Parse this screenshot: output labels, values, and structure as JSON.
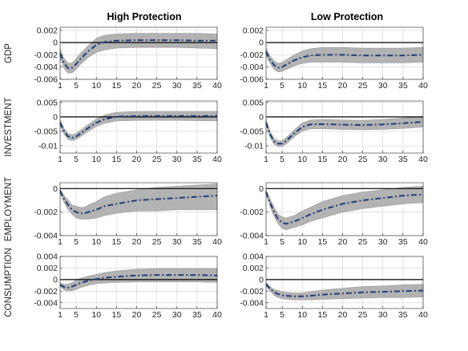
{
  "columns": [
    "High Protection",
    "Low Protection"
  ],
  "rows": [
    "GDP",
    "INVESTMENT",
    "EMPLOYMENT",
    "CONSUMPTION"
  ],
  "colors": {
    "band": "#b3b3b3",
    "irf": "#1f3f7a",
    "zero_line": "#000000",
    "grid": "#dcdcdc"
  },
  "chart_data": [
    {
      "type": "line",
      "row": "GDP",
      "column": "High Protection",
      "ylabel": "GDP",
      "xlim": [
        1,
        40
      ],
      "ylim": [
        -0.006,
        0.0025
      ],
      "xticks": [
        1,
        5,
        10,
        15,
        20,
        25,
        30,
        35,
        40
      ],
      "yticks": [
        0.002,
        0,
        -0.002,
        -0.004,
        -0.006
      ],
      "ytick_labels": [
        "0.002",
        "0",
        "-0.002",
        "-0.004",
        "-0.006"
      ],
      "grid": true,
      "zero_line": 0,
      "x": [
        1,
        2,
        3,
        4,
        5,
        6,
        8,
        10,
        12,
        15,
        20,
        25,
        30,
        35,
        40
      ],
      "series": [
        {
          "role": "median",
          "style": "dash-dot",
          "values": [
            -0.0018,
            -0.0034,
            -0.0042,
            -0.0041,
            -0.0035,
            -0.0027,
            -0.0014,
            -0.0004,
            0.0001,
            0.0003,
            0.0004,
            0.0004,
            0.0004,
            0.0003,
            0.0003
          ]
        },
        {
          "role": "lower",
          "values": [
            -0.0026,
            -0.0042,
            -0.005,
            -0.0049,
            -0.0044,
            -0.0036,
            -0.0024,
            -0.0016,
            -0.0012,
            -0.0009,
            -0.0008,
            -0.0008,
            -0.0008,
            -0.0009,
            -0.001
          ]
        },
        {
          "role": "upper",
          "values": [
            -0.001,
            -0.0026,
            -0.0034,
            -0.0033,
            -0.0026,
            -0.0018,
            -0.0005,
            0.0007,
            0.0012,
            0.0014,
            0.0015,
            0.0015,
            0.0015,
            0.0015,
            0.0014
          ]
        }
      ]
    },
    {
      "type": "line",
      "row": "GDP",
      "column": "Low Protection",
      "ylabel": "",
      "xlim": [
        1,
        40
      ],
      "ylim": [
        -0.006,
        0.0025
      ],
      "xticks": [
        1,
        5,
        10,
        15,
        20,
        25,
        30,
        35,
        40
      ],
      "yticks": [
        0.002,
        0,
        -0.002,
        -0.004,
        -0.006
      ],
      "ytick_labels": [
        "0.002",
        "0",
        "-0.002",
        "-0.004",
        "-0.006"
      ],
      "grid": true,
      "zero_line": 0,
      "x": [
        1,
        2,
        3,
        4,
        5,
        6,
        8,
        10,
        12,
        15,
        20,
        25,
        30,
        35,
        40
      ],
      "series": [
        {
          "role": "median",
          "style": "dash-dot",
          "values": [
            -0.0015,
            -0.0028,
            -0.0037,
            -0.0041,
            -0.004,
            -0.0036,
            -0.0029,
            -0.0024,
            -0.0021,
            -0.002,
            -0.002,
            -0.0021,
            -0.0021,
            -0.0021,
            -0.002
          ]
        },
        {
          "role": "lower",
          "values": [
            -0.0021,
            -0.0034,
            -0.0044,
            -0.0048,
            -0.0047,
            -0.0044,
            -0.0038,
            -0.0034,
            -0.0032,
            -0.0032,
            -0.0032,
            -0.0033,
            -0.0033,
            -0.0033,
            -0.0032
          ]
        },
        {
          "role": "upper",
          "values": [
            -0.0009,
            -0.0022,
            -0.003,
            -0.0034,
            -0.0032,
            -0.0028,
            -0.002,
            -0.0014,
            -0.001,
            -0.0008,
            -0.0008,
            -0.0009,
            -0.0009,
            -0.0009,
            -0.0008
          ]
        }
      ]
    },
    {
      "type": "line",
      "row": "INVESTMENT",
      "column": "High Protection",
      "ylabel": "INVESTMENT",
      "xlim": [
        1,
        40
      ],
      "ylim": [
        -0.0125,
        0.0055
      ],
      "xticks": [
        1,
        5,
        10,
        15,
        20,
        25,
        30,
        35,
        40
      ],
      "yticks": [
        0.005,
        0,
        -0.005,
        -0.01
      ],
      "ytick_labels": [
        "0.005",
        "0",
        "-0.005",
        "-0.01"
      ],
      "grid": true,
      "zero_line": 0,
      "x": [
        1,
        2,
        3,
        4,
        5,
        6,
        8,
        10,
        12,
        15,
        20,
        25,
        30,
        35,
        40
      ],
      "series": [
        {
          "role": "median",
          "style": "dash-dot",
          "values": [
            -0.002,
            -0.005,
            -0.0068,
            -0.0072,
            -0.0068,
            -0.0058,
            -0.0038,
            -0.002,
            -0.0008,
            0.0001,
            0.0003,
            0.0003,
            0.0003,
            0.0003,
            0.0003
          ]
        },
        {
          "role": "lower",
          "values": [
            -0.003,
            -0.006,
            -0.0078,
            -0.0082,
            -0.0078,
            -0.0069,
            -0.005,
            -0.0033,
            -0.0022,
            -0.0014,
            -0.0012,
            -0.0012,
            -0.0012,
            -0.0013,
            -0.0014
          ]
        },
        {
          "role": "upper",
          "values": [
            -0.001,
            -0.004,
            -0.0058,
            -0.0062,
            -0.0057,
            -0.0047,
            -0.0026,
            -0.0007,
            0.0006,
            0.0016,
            0.0019,
            0.0019,
            0.0019,
            0.0019,
            0.0019
          ]
        }
      ]
    },
    {
      "type": "line",
      "row": "INVESTMENT",
      "column": "Low Protection",
      "ylabel": "",
      "xlim": [
        1,
        40
      ],
      "ylim": [
        -0.0125,
        0.0055
      ],
      "xticks": [
        1,
        5,
        10,
        15,
        20,
        25,
        30,
        35,
        40
      ],
      "yticks": [
        0.005,
        0,
        -0.005,
        -0.01
      ],
      "ytick_labels": [
        "0.005",
        "0",
        "-0.005",
        "-0.01"
      ],
      "grid": true,
      "zero_line": 0,
      "x": [
        1,
        2,
        3,
        4,
        5,
        6,
        8,
        10,
        12,
        15,
        20,
        25,
        30,
        35,
        40
      ],
      "series": [
        {
          "role": "median",
          "style": "dash-dot",
          "values": [
            -0.002,
            -0.006,
            -0.0085,
            -0.0093,
            -0.0092,
            -0.0083,
            -0.0057,
            -0.0035,
            -0.0026,
            -0.0025,
            -0.0027,
            -0.0028,
            -0.0026,
            -0.0022,
            -0.0017
          ]
        },
        {
          "role": "lower",
          "values": [
            -0.003,
            -0.007,
            -0.0095,
            -0.0103,
            -0.0102,
            -0.0094,
            -0.0069,
            -0.0049,
            -0.0041,
            -0.0041,
            -0.0043,
            -0.0044,
            -0.0043,
            -0.004,
            -0.0035
          ]
        },
        {
          "role": "upper",
          "values": [
            -0.001,
            -0.005,
            -0.0075,
            -0.0083,
            -0.0082,
            -0.0072,
            -0.0045,
            -0.0021,
            -0.0011,
            -0.0009,
            -0.0011,
            -0.0012,
            -0.0009,
            -0.0004,
            0.0001
          ]
        }
      ]
    },
    {
      "type": "line",
      "row": "EMPLOYMENT",
      "column": "High Protection",
      "ylabel": "EMPLOYMENT",
      "xlim": [
        1,
        40
      ],
      "ylim": [
        -0.004,
        0.0005
      ],
      "xticks": [
        1,
        5,
        10,
        15,
        20,
        25,
        30,
        35,
        40
      ],
      "yticks": [
        0,
        -0.002,
        -0.004
      ],
      "ytick_labels": [
        "0",
        "-0.002",
        "-0.004"
      ],
      "grid": true,
      "zero_line": 0,
      "x": [
        1,
        2,
        3,
        4,
        5,
        6,
        7,
        8,
        10,
        12,
        15,
        20,
        25,
        30,
        35,
        40
      ],
      "series": [
        {
          "role": "median",
          "style": "dash-dot",
          "values": [
            -0.0002,
            -0.0009,
            -0.0014,
            -0.0018,
            -0.002,
            -0.0021,
            -0.0021,
            -0.002,
            -0.0018,
            -0.0015,
            -0.0013,
            -0.001,
            -0.0009,
            -0.0008,
            -0.0007,
            -0.0006
          ]
        },
        {
          "role": "lower",
          "values": [
            -0.0004,
            -0.0012,
            -0.0018,
            -0.0022,
            -0.0025,
            -0.0026,
            -0.0026,
            -0.0026,
            -0.0025,
            -0.0023,
            -0.0021,
            -0.0019,
            -0.0019,
            -0.0018,
            -0.0018,
            -0.0018
          ]
        },
        {
          "role": "upper",
          "values": [
            0.0,
            -0.0006,
            -0.001,
            -0.0014,
            -0.0015,
            -0.0016,
            -0.0016,
            -0.0014,
            -0.0011,
            -0.0007,
            -0.0004,
            -0.0001,
            0.0001,
            0.0002,
            0.0003,
            0.0004
          ]
        }
      ]
    },
    {
      "type": "line",
      "row": "EMPLOYMENT",
      "column": "Low Protection",
      "ylabel": "",
      "xlim": [
        1,
        40
      ],
      "ylim": [
        -0.004,
        0.0005
      ],
      "xticks": [
        1,
        5,
        10,
        15,
        20,
        25,
        30,
        35,
        40
      ],
      "yticks": [
        0,
        -0.002,
        -0.004
      ],
      "ytick_labels": [
        "0",
        "-0.002",
        "-0.004"
      ],
      "grid": true,
      "zero_line": 0,
      "x": [
        1,
        2,
        3,
        4,
        5,
        6,
        7,
        8,
        10,
        12,
        15,
        20,
        25,
        30,
        35,
        40
      ],
      "series": [
        {
          "role": "median",
          "style": "dash-dot",
          "values": [
            -0.0003,
            -0.0012,
            -0.002,
            -0.0026,
            -0.0029,
            -0.003,
            -0.0029,
            -0.0028,
            -0.0025,
            -0.0022,
            -0.0018,
            -0.0013,
            -0.001,
            -0.0008,
            -0.0006,
            -0.0005
          ]
        },
        {
          "role": "lower",
          "values": [
            -0.0005,
            -0.0015,
            -0.0024,
            -0.003,
            -0.0034,
            -0.0035,
            -0.0034,
            -0.0033,
            -0.0031,
            -0.0028,
            -0.0025,
            -0.002,
            -0.0017,
            -0.0015,
            -0.0013,
            -0.0012
          ]
        },
        {
          "role": "upper",
          "values": [
            -0.0001,
            -0.0009,
            -0.0016,
            -0.0022,
            -0.0024,
            -0.0025,
            -0.0024,
            -0.0023,
            -0.0019,
            -0.0016,
            -0.0011,
            -0.0006,
            -0.0003,
            -0.0001,
            0.0001,
            0.0002
          ]
        }
      ]
    },
    {
      "type": "line",
      "row": "CONSUMPTION",
      "column": "High Protection",
      "ylabel": "CONSUMPTION",
      "xlim": [
        1,
        40
      ],
      "ylim": [
        -0.005,
        0.004
      ],
      "xticks": [
        1,
        5,
        10,
        15,
        20,
        25,
        30,
        35,
        40
      ],
      "yticks": [
        0.004,
        0.002,
        0,
        -0.002,
        -0.004
      ],
      "ytick_labels": [
        "0.004",
        "0.002",
        "0",
        "-0.002",
        "-0.004"
      ],
      "grid": true,
      "zero_line": 0,
      "x": [
        1,
        2,
        3,
        4,
        5,
        6,
        8,
        10,
        12,
        15,
        20,
        25,
        30,
        35,
        40
      ],
      "series": [
        {
          "role": "median",
          "style": "dash-dot",
          "values": [
            -0.0009,
            -0.0013,
            -0.0014,
            -0.0012,
            -0.0009,
            -0.0006,
            -0.0002,
            0.0001,
            0.0003,
            0.0005,
            0.0007,
            0.0008,
            0.0008,
            0.0008,
            0.0007
          ]
        },
        {
          "role": "lower",
          "values": [
            -0.0012,
            -0.0018,
            -0.002,
            -0.0019,
            -0.0017,
            -0.0014,
            -0.001,
            -0.0007,
            -0.0006,
            -0.0005,
            -0.0004,
            -0.0004,
            -0.0004,
            -0.0004,
            -0.0005
          ]
        },
        {
          "role": "upper",
          "values": [
            -0.0006,
            -0.0008,
            -0.0008,
            -0.0005,
            -0.0001,
            0.0002,
            0.0006,
            0.0009,
            0.0012,
            0.0015,
            0.0018,
            0.0019,
            0.0019,
            0.0019,
            0.0019
          ]
        }
      ]
    },
    {
      "type": "line",
      "row": "CONSUMPTION",
      "column": "Low Protection",
      "ylabel": "",
      "xlim": [
        1,
        40
      ],
      "ylim": [
        -0.005,
        0.004
      ],
      "xticks": [
        1,
        5,
        10,
        15,
        20,
        25,
        30,
        35,
        40
      ],
      "yticks": [
        0.004,
        0.002,
        0,
        -0.002,
        -0.004
      ],
      "ytick_labels": [
        "0.004",
        "0.002",
        "0",
        "-0.002",
        "-0.004"
      ],
      "grid": true,
      "zero_line": 0,
      "x": [
        1,
        2,
        3,
        4,
        5,
        6,
        8,
        10,
        12,
        15,
        20,
        25,
        30,
        35,
        40
      ],
      "series": [
        {
          "role": "median",
          "style": "dash-dot",
          "values": [
            -0.0008,
            -0.0016,
            -0.0022,
            -0.0025,
            -0.0027,
            -0.0028,
            -0.0029,
            -0.0029,
            -0.0028,
            -0.0026,
            -0.0024,
            -0.0022,
            -0.0021,
            -0.002,
            -0.0019
          ]
        },
        {
          "role": "lower",
          "values": [
            -0.0011,
            -0.002,
            -0.0027,
            -0.0031,
            -0.0033,
            -0.0034,
            -0.0035,
            -0.0035,
            -0.0035,
            -0.0034,
            -0.0033,
            -0.0032,
            -0.0031,
            -0.0031,
            -0.003
          ]
        },
        {
          "role": "upper",
          "values": [
            -0.0005,
            -0.0012,
            -0.0017,
            -0.0019,
            -0.0021,
            -0.0022,
            -0.0023,
            -0.0023,
            -0.0021,
            -0.0018,
            -0.0015,
            -0.0012,
            -0.0011,
            -0.0009,
            -0.0008
          ]
        }
      ]
    }
  ]
}
